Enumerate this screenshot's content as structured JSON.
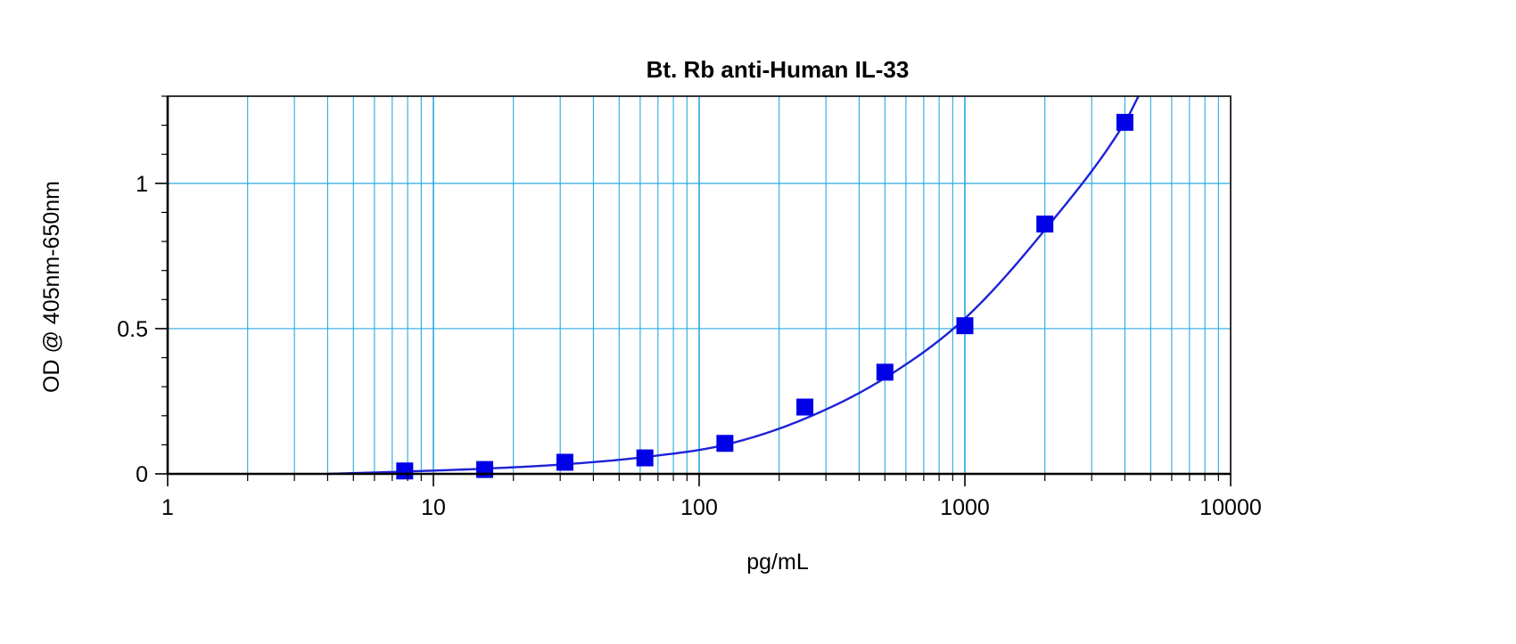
{
  "chart_data": {
    "type": "scatter",
    "title": "Bt. Rb anti-Human IL-33",
    "xlabel": "pg/mL",
    "ylabel": "OD @ 405nm-650nm",
    "xscale": "log",
    "xlim": [
      1,
      10000
    ],
    "ylim": [
      0,
      1.3
    ],
    "x_ticks": [
      1,
      10,
      100,
      1000,
      10000
    ],
    "x_tick_labels": [
      "1",
      "10",
      "100",
      "1000",
      "10000"
    ],
    "y_ticks": [
      0,
      0.5,
      1
    ],
    "y_tick_labels": [
      "0",
      "0.5",
      "1"
    ],
    "grid": true,
    "colors": {
      "grid": "#29A9E0",
      "marker": "#0000E6",
      "curve": "#1E22D6",
      "axes": "#000000"
    },
    "series": [
      {
        "points": [
          {
            "x": 7.8,
            "y": 0.01
          },
          {
            "x": 15.6,
            "y": 0.015
          },
          {
            "x": 31.25,
            "y": 0.04
          },
          {
            "x": 62.5,
            "y": 0.055
          },
          {
            "x": 125,
            "y": 0.105
          },
          {
            "x": 250,
            "y": 0.23
          },
          {
            "x": 500,
            "y": 0.35
          },
          {
            "x": 1000,
            "y": 0.51
          },
          {
            "x": 2000,
            "y": 0.86
          },
          {
            "x": 4000,
            "y": 1.21
          }
        ]
      }
    ],
    "fit_curve": {
      "x": [
        4,
        7.8,
        15.6,
        31.25,
        62.5,
        125,
        250,
        500,
        1000,
        2000,
        4000,
        4500
      ],
      "y": [
        0.0,
        0.008,
        0.018,
        0.033,
        0.058,
        0.1,
        0.19,
        0.33,
        0.535,
        0.84,
        1.21,
        1.3
      ]
    }
  }
}
